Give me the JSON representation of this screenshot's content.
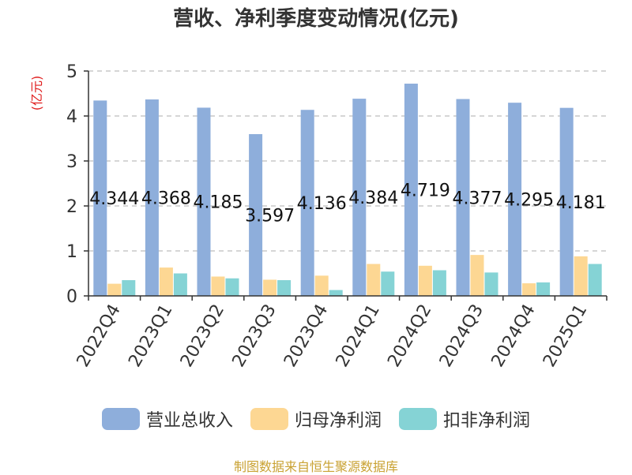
{
  "chart_data": {
    "type": "bar",
    "title": "营收、净利季度变动情况(亿元)",
    "ylabel": "(亿元)",
    "categories": [
      "2022Q4",
      "2023Q1",
      "2023Q2",
      "2023Q3",
      "2023Q4",
      "2024Q1",
      "2024Q2",
      "2024Q3",
      "2024Q4",
      "2025Q1"
    ],
    "ylim": [
      0,
      5
    ],
    "yticks": [
      0,
      1,
      2,
      3,
      4,
      5
    ],
    "grid": true,
    "legend_position": "bottom",
    "series": [
      {
        "name": "营业总收入",
        "color": "#8eaedb",
        "values": [
          4.344,
          4.368,
          4.185,
          3.597,
          4.136,
          4.384,
          4.719,
          4.377,
          4.295,
          4.181
        ],
        "labels": [
          "4.344",
          "4.368",
          "4.185",
          "3.597",
          "4.136",
          "4.384",
          "4.719",
          "4.377",
          "4.295",
          "4.181"
        ]
      },
      {
        "name": "归母净利润",
        "color": "#fdd793",
        "values": [
          0.27,
          0.63,
          0.43,
          0.36,
          0.45,
          0.71,
          0.67,
          0.91,
          0.28,
          0.88
        ]
      },
      {
        "name": "扣非净利润",
        "color": "#85d3d5",
        "values": [
          0.35,
          0.5,
          0.39,
          0.35,
          0.13,
          0.54,
          0.57,
          0.52,
          0.3,
          0.71
        ]
      }
    ]
  },
  "source": "制图数据来自恒生聚源数据库"
}
